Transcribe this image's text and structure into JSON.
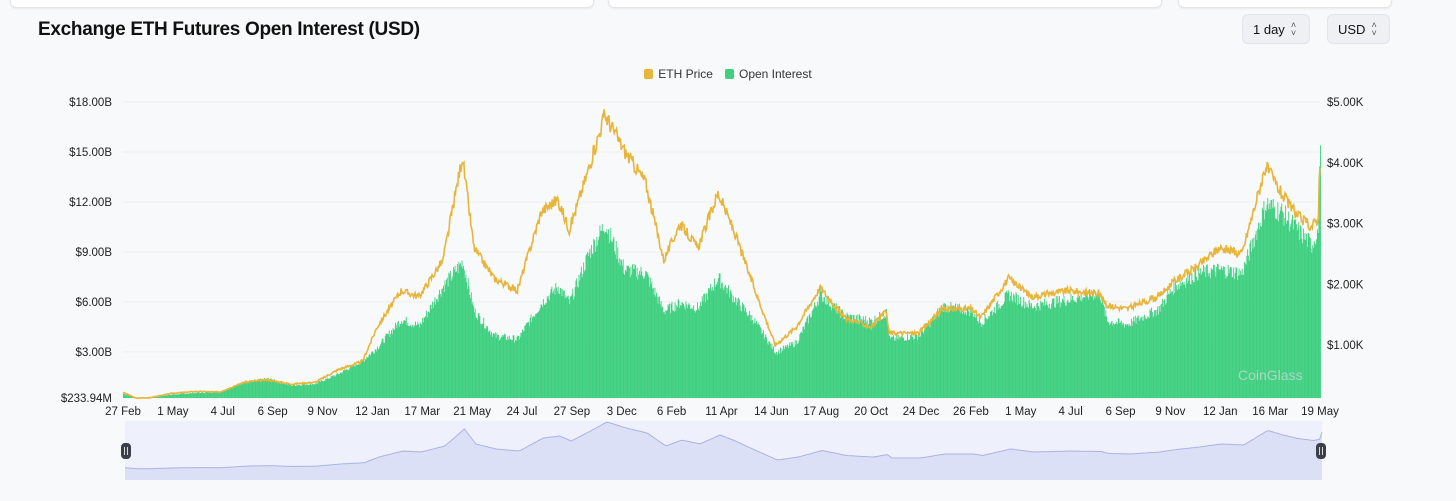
{
  "header": {
    "title": "Exchange ETH Futures Open Interest (USD)"
  },
  "controls": {
    "interval": "1 day",
    "currency": "USD"
  },
  "watermark": "CoinGlass",
  "colors": {
    "price": "#e8b53b",
    "open_interest": "#3ecf7f",
    "navigator_fill": "#dbe0f7",
    "navigator_line": "#aab3e3"
  },
  "chart_data": {
    "type": "bar+line",
    "title": "",
    "legend": {
      "position": "top-center",
      "items": [
        "ETH Price",
        "Open Interest"
      ]
    },
    "grid": true,
    "left_axis": {
      "ticks": [
        "$233.94M",
        "$3.00B",
        "$6.00B",
        "$9.00B",
        "$12.00B",
        "$15.00B",
        "$18.00B"
      ],
      "tick_values": [
        0.23394,
        3,
        6,
        9,
        12,
        15,
        18
      ],
      "range": [
        0.23394,
        18
      ],
      "unit": "USD billions"
    },
    "right_axis": {
      "ticks": [
        "$1.00K",
        "$2.00K",
        "$3.00K",
        "$4.00K",
        "$5.00K"
      ],
      "tick_values": [
        1000,
        2000,
        3000,
        4000,
        5000
      ],
      "range": [
        0,
        5000
      ],
      "unit": "USD"
    },
    "x_axis": {
      "range": [
        "2020-02-27",
        "2024-05-21"
      ],
      "ticks": [
        "27 Feb",
        "1 May",
        "4 Jul",
        "6 Sep",
        "9 Nov",
        "12 Jan",
        "17 Mar",
        "21 May",
        "24 Jul",
        "27 Sep",
        "3 Dec",
        "6 Feb",
        "11 Apr",
        "14 Jun",
        "17 Aug",
        "20 Oct",
        "24 Dec",
        "26 Feb",
        "1 May",
        "4 Jul",
        "6 Sep",
        "9 Nov",
        "12 Jan",
        "16 Mar",
        "19 May"
      ]
    },
    "x": [
      "2020-02-27",
      "2020-03-15",
      "2020-04-01",
      "2020-05-01",
      "2020-06-01",
      "2020-07-01",
      "2020-08-01",
      "2020-09-01",
      "2020-10-01",
      "2020-11-01",
      "2020-12-01",
      "2021-01-01",
      "2021-01-20",
      "2021-02-20",
      "2021-03-15",
      "2021-04-15",
      "2021-05-10",
      "2021-05-25",
      "2021-06-20",
      "2021-07-20",
      "2021-08-20",
      "2021-09-10",
      "2021-09-25",
      "2021-10-20",
      "2021-11-10",
      "2021-12-05",
      "2022-01-01",
      "2022-01-25",
      "2022-02-15",
      "2022-03-10",
      "2022-04-05",
      "2022-04-25",
      "2022-05-20",
      "2022-06-18",
      "2022-07-15",
      "2022-08-15",
      "2022-09-15",
      "2022-10-20",
      "2022-11-08",
      "2022-11-12",
      "2022-12-20",
      "2023-01-20",
      "2023-02-26",
      "2023-03-10",
      "2023-04-15",
      "2023-05-15",
      "2023-07-01",
      "2023-08-10",
      "2023-08-20",
      "2023-09-15",
      "2023-10-25",
      "2023-11-15",
      "2023-12-15",
      "2024-01-12",
      "2024-02-10",
      "2024-03-12",
      "2024-04-01",
      "2024-04-20",
      "2024-05-10",
      "2024-05-19",
      "2024-05-20",
      "2024-05-21"
    ],
    "series": [
      {
        "name": "Open Interest",
        "type": "bar",
        "axis": "left",
        "unit": "USD billions",
        "values": [
          0.5,
          0.25,
          0.3,
          0.45,
          0.55,
          0.6,
          1.2,
          1.4,
          1.0,
          1.1,
          1.7,
          2.5,
          3.3,
          5.0,
          4.6,
          7.0,
          8.5,
          5.5,
          4.0,
          3.8,
          6.0,
          7.0,
          6.0,
          9.0,
          10.8,
          8.0,
          7.8,
          5.5,
          6.0,
          5.7,
          7.5,
          6.3,
          5.0,
          3.0,
          3.6,
          6.5,
          5.2,
          4.9,
          5.4,
          3.8,
          4.0,
          5.8,
          5.5,
          4.8,
          6.5,
          5.8,
          6.2,
          6.6,
          4.9,
          4.7,
          5.6,
          7.0,
          7.8,
          8.0,
          7.8,
          12.0,
          11.5,
          10.5,
          9.5,
          10.5,
          15.0,
          15.5
        ]
      },
      {
        "name": "ETH Price",
        "type": "line",
        "axis": "right",
        "unit": "USD",
        "values": [
          225,
          130,
          135,
          210,
          240,
          230,
          390,
          430,
          360,
          390,
          600,
          730,
          1300,
          1900,
          1800,
          2400,
          4100,
          2600,
          2100,
          1900,
          3200,
          3400,
          2900,
          3900,
          4800,
          4200,
          3700,
          2400,
          3000,
          2600,
          3500,
          2900,
          2000,
          1000,
          1300,
          1950,
          1450,
          1300,
          1550,
          1200,
          1200,
          1600,
          1600,
          1450,
          2100,
          1800,
          1900,
          1850,
          1650,
          1600,
          1800,
          2050,
          2300,
          2600,
          2500,
          3950,
          3500,
          3150,
          2950,
          3100,
          3750,
          3800
        ]
      }
    ]
  }
}
